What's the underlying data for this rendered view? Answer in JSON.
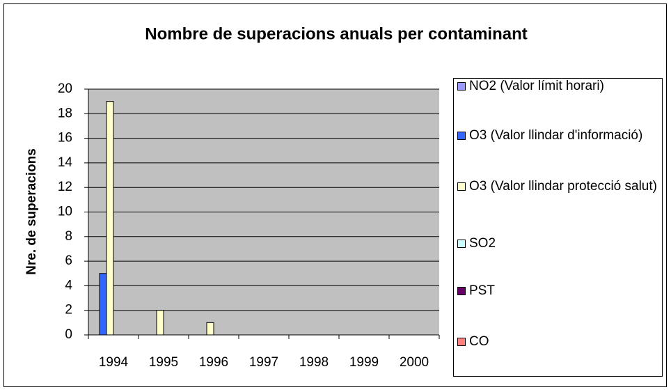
{
  "chart_data": {
    "type": "bar",
    "title": "Nombre de superacions anuals per contaminant",
    "y_label": "Nre. de superacions",
    "categories": [
      "1994",
      "1995",
      "1996",
      "1997",
      "1998",
      "1999",
      "2000"
    ],
    "series": [
      {
        "name": "NO2 (Valor límit horari)",
        "color": "#9999ff",
        "values": [
          0,
          0,
          0,
          0,
          0,
          0,
          0
        ]
      },
      {
        "name": "O3 (Valor llindar d'informació)",
        "color": "#3366ff",
        "values": [
          5,
          0,
          0,
          0,
          0,
          0,
          0
        ]
      },
      {
        "name": "O3 (Valor llindar protecció salut)",
        "color": "#ffffcc",
        "values": [
          19,
          2,
          1,
          0,
          0,
          0,
          0
        ]
      },
      {
        "name": "SO2",
        "color": "#ccffff",
        "values": [
          0,
          0,
          0,
          0,
          0,
          0,
          0
        ]
      },
      {
        "name": "PST",
        "color": "#660066",
        "values": [
          0,
          0,
          0,
          0,
          0,
          0,
          0
        ]
      },
      {
        "name": "CO",
        "color": "#ff8080",
        "values": [
          0,
          0,
          0,
          0,
          0,
          0,
          0
        ]
      }
    ],
    "ylim": [
      0,
      20
    ],
    "yticks": [
      0,
      2,
      4,
      6,
      8,
      10,
      12,
      14,
      16,
      18,
      20
    ],
    "grid": true,
    "legend": "right"
  }
}
